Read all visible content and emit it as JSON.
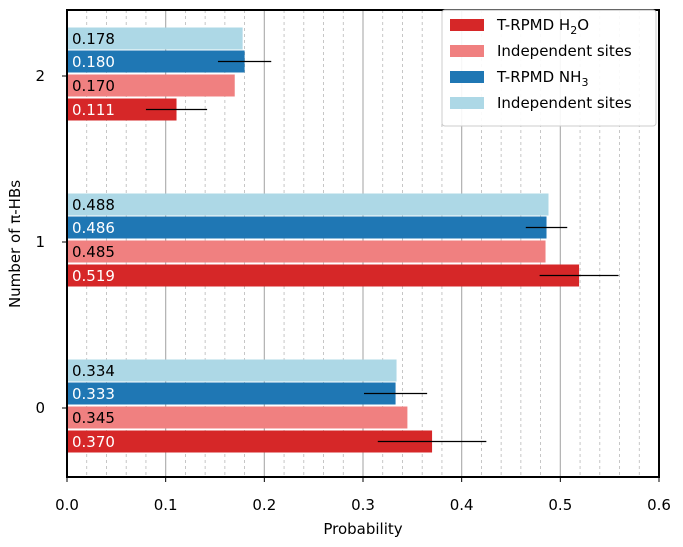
{
  "chart_data": {
    "type": "bar",
    "orientation": "horizontal",
    "xlabel": "Probability",
    "ylabel": "Number of π-HBs",
    "xlim": [
      0.0,
      0.6
    ],
    "x_ticks": [
      "0.0",
      "0.1",
      "0.2",
      "0.3",
      "0.4",
      "0.5",
      "0.6"
    ],
    "x_major_step": 0.1,
    "x_minor_step": 0.02,
    "grid": true,
    "categories": [
      "0",
      "1",
      "2"
    ],
    "series": [
      {
        "name": "T-RPMD H₂O",
        "color": "#d62728",
        "label_color": "#ffffff",
        "values": [
          0.37,
          0.519,
          0.111
        ],
        "labels": [
          "0.370",
          "0.519",
          "0.111"
        ],
        "errors": [
          0.055,
          0.04,
          0.031
        ]
      },
      {
        "name": "Independent sites",
        "color": "#f08080",
        "label_color": "#000000",
        "values": [
          0.345,
          0.485,
          0.17
        ],
        "labels": [
          "0.345",
          "0.485",
          "0.170"
        ]
      },
      {
        "name": "T-RPMD NH₃",
        "color": "#1f77b4",
        "label_color": "#ffffff",
        "values": [
          0.333,
          0.486,
          0.18
        ],
        "labels": [
          "0.333",
          "0.486",
          "0.180"
        ],
        "errors": [
          0.032,
          0.021,
          0.027
        ]
      },
      {
        "name": "Independent sites",
        "color": "#add8e6",
        "label_color": "#000000",
        "values": [
          0.334,
          0.488,
          0.178
        ],
        "labels": [
          "0.334",
          "0.488",
          "0.178"
        ]
      }
    ],
    "legend": {
      "position": "top-right",
      "entries": [
        {
          "main": "T-RPMD H",
          "sub": "2",
          "tail": "O"
        },
        {
          "main": "Independent sites",
          "sub": "",
          "tail": ""
        },
        {
          "main": "T-RPMD NH",
          "sub": "3",
          "tail": ""
        },
        {
          "main": "Independent sites",
          "sub": "",
          "tail": ""
        }
      ]
    }
  }
}
